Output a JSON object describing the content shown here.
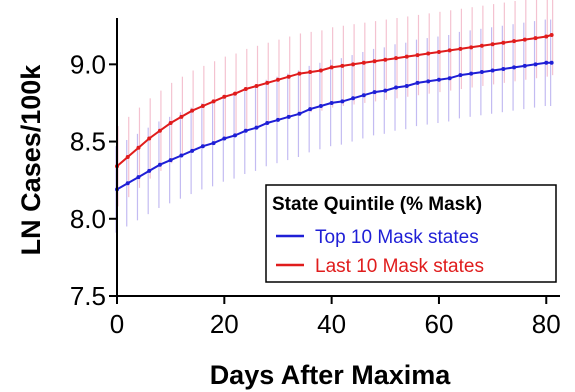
{
  "chart_data": {
    "type": "line",
    "xlabel": "Days After Maxima",
    "ylabel": "LN Cases/100k",
    "xlim": [
      0,
      82
    ],
    "ylim": [
      7.5,
      9.3
    ],
    "x_ticks": [
      0,
      20,
      40,
      60,
      80
    ],
    "x_tick_labels": [
      "0",
      "20",
      "40",
      "60",
      "80"
    ],
    "y_ticks": [
      7.5,
      8.0,
      8.5,
      9.0
    ],
    "y_tick_labels": [
      "7.5",
      "8.0",
      "8.5",
      "9.0"
    ],
    "grid": false,
    "legend": {
      "title": "State Quintile (% Mask)",
      "placement": "bottom-right"
    },
    "x": [
      0,
      2,
      4,
      6,
      8,
      10,
      12,
      14,
      16,
      18,
      20,
      22,
      24,
      26,
      28,
      30,
      32,
      34,
      36,
      38,
      40,
      42,
      44,
      46,
      48,
      50,
      52,
      54,
      56,
      58,
      60,
      62,
      64,
      66,
      68,
      70,
      72,
      74,
      76,
      78,
      80,
      81
    ],
    "series": [
      {
        "name": "Top 10 Mask states",
        "color": "#1f1fd6",
        "error_color": "#b9b0f0",
        "values": [
          8.19,
          8.23,
          8.27,
          8.31,
          8.35,
          8.38,
          8.41,
          8.44,
          8.47,
          8.49,
          8.52,
          8.54,
          8.57,
          8.59,
          8.62,
          8.64,
          8.66,
          8.68,
          8.71,
          8.73,
          8.75,
          8.76,
          8.78,
          8.8,
          8.82,
          8.83,
          8.85,
          8.86,
          8.88,
          8.89,
          8.9,
          8.91,
          8.93,
          8.94,
          8.95,
          8.96,
          8.97,
          8.98,
          8.99,
          9.0,
          9.01,
          9.01
        ],
        "error": 0.28
      },
      {
        "name": "Last 10 Mask states",
        "color": "#e01c1c",
        "error_color": "#f3b8c8",
        "values": [
          8.34,
          8.4,
          8.46,
          8.52,
          8.57,
          8.62,
          8.66,
          8.7,
          8.73,
          8.76,
          8.79,
          8.81,
          8.84,
          8.86,
          8.88,
          8.9,
          8.92,
          8.94,
          8.95,
          8.96,
          8.98,
          8.99,
          9.0,
          9.01,
          9.02,
          9.03,
          9.04,
          9.05,
          9.06,
          9.07,
          9.08,
          9.09,
          9.1,
          9.11,
          9.12,
          9.13,
          9.14,
          9.15,
          9.16,
          9.17,
          9.18,
          9.19
        ],
        "error": 0.26
      }
    ]
  }
}
